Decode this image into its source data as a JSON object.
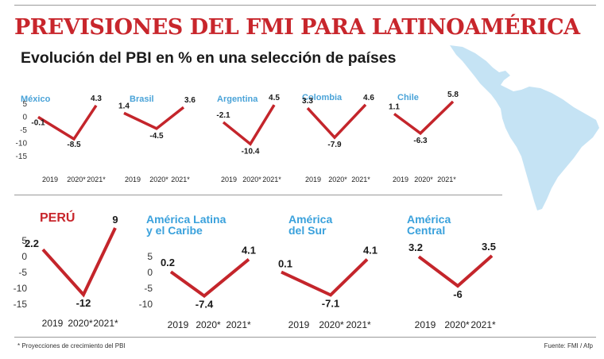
{
  "header": {
    "title": "PREVISIONES DEL FMI PARA LATINOAMÉRICA",
    "subtitle": "Evolución del PBI en % en una selección de países"
  },
  "footer": {
    "footnote": "* Proyecciones de crecimiento  del PBI",
    "source": "Fuente: FMI / Afp"
  },
  "colors": {
    "line": "#c4252b",
    "title_red": "#c8262c",
    "small_label_blue": "#4aa3d8",
    "big_label_blue": "#3aa1dc",
    "map": "#c5e3f4",
    "text": "#1a1a1a"
  },
  "map": {
    "icon": "latin-america-map-icon"
  },
  "chart_data": [
    {
      "type": "line",
      "title": "México",
      "categories": [
        "2019",
        "2020*",
        "2021*"
      ],
      "values": [
        -0.1,
        -8.5,
        4.3
      ],
      "value_labels": [
        "-0.1",
        "-8.5",
        "4.3"
      ],
      "ylim": [
        -15,
        5
      ],
      "yticks": [
        "5",
        "0",
        "-5",
        "-10",
        "-15"
      ]
    },
    {
      "type": "line",
      "title": "Brasil",
      "categories": [
        "2019",
        "2020*",
        "2021*"
      ],
      "values": [
        1.4,
        -4.5,
        3.6
      ],
      "value_labels": [
        "1.4",
        "-4.5",
        "3.6"
      ],
      "ylim": [
        -15,
        5
      ]
    },
    {
      "type": "line",
      "title": "Argentina",
      "categories": [
        "2019",
        "2020*",
        "2021*"
      ],
      "values": [
        -2.1,
        -10.4,
        4.5
      ],
      "value_labels": [
        "-2.1",
        "-10.4",
        "4.5"
      ],
      "ylim": [
        -15,
        5
      ]
    },
    {
      "type": "line",
      "title": "Colombia",
      "categories": [
        "2019",
        "2020*",
        "2021*"
      ],
      "values": [
        3.3,
        -7.9,
        4.6
      ],
      "value_labels": [
        "3.3",
        "-7.9",
        "4.6"
      ],
      "ylim": [
        -15,
        5
      ]
    },
    {
      "type": "line",
      "title": "Chile",
      "categories": [
        "2019",
        "2020*",
        "2021*"
      ],
      "values": [
        1.1,
        -6.3,
        5.8
      ],
      "value_labels": [
        "1.1",
        "-6.3",
        "5.8"
      ],
      "ylim": [
        -15,
        5
      ]
    },
    {
      "type": "line",
      "title": "PERÚ",
      "categories": [
        "2019",
        "2020*",
        "2021*"
      ],
      "values": [
        2.2,
        -12,
        9
      ],
      "value_labels": [
        "2.2",
        "-12",
        "9"
      ],
      "ylim": [
        -15,
        5
      ],
      "yticks": [
        "5",
        "0",
        "-5",
        "-10",
        "-15"
      ]
    },
    {
      "type": "line",
      "title": "América Latina y el Caribe",
      "categories": [
        "2019",
        "2020*",
        "2021*"
      ],
      "values": [
        0.2,
        -7.4,
        4.1
      ],
      "value_labels": [
        "0.2",
        "-7.4",
        "4.1"
      ],
      "ylim": [
        -10,
        5
      ],
      "yticks": [
        "5",
        "0",
        "-5",
        "-10"
      ]
    },
    {
      "type": "line",
      "title": "América del Sur",
      "categories": [
        "2019",
        "2020*",
        "2021*"
      ],
      "values": [
        0.1,
        -7.1,
        4.1
      ],
      "value_labels": [
        "0.1",
        "-7.1",
        "4.1"
      ],
      "ylim": [
        -10,
        5
      ]
    },
    {
      "type": "line",
      "title": "América Central",
      "categories": [
        "2019",
        "2020*",
        "2021*"
      ],
      "values": [
        3.2,
        -6,
        3.5
      ],
      "value_labels": [
        "3.2",
        "-6",
        "3.5"
      ],
      "ylim": [
        -10,
        5
      ]
    }
  ]
}
